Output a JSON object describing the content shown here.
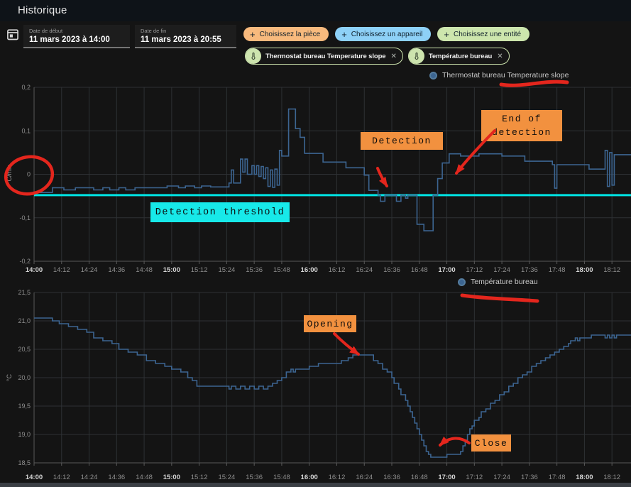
{
  "header": {
    "title": "Historique"
  },
  "filters": {
    "date_start": {
      "label": "Date de début",
      "value": "11 mars 2023 à 14:00"
    },
    "date_end": {
      "label": "Date de fin",
      "value": "11 mars 2023 à 20:55"
    },
    "pickers": [
      {
        "id": "area",
        "label": "Choisissez la pièce",
        "plus": "+",
        "color": "#f8ba7d"
      },
      {
        "id": "device",
        "label": "Choisissez un appareil",
        "plus": "+",
        "color": "#8ed1f7"
      },
      {
        "id": "entity",
        "label": "Choisissez une entité",
        "plus": "+",
        "color": "#cde6ad"
      }
    ],
    "chips": [
      {
        "label": "Thermostat bureau Temperature slope",
        "close": "✕"
      },
      {
        "label": "Température bureau",
        "close": "✕"
      }
    ]
  },
  "annotations": {
    "red_color": "#e4261d",
    "box_color": "#f2913f",
    "cyan_color": "#17e9e9",
    "detection": "Detection",
    "end_of_detection": "End of detection",
    "detection_threshold": "Detection threshold",
    "opening": "Opening",
    "close": "Close"
  },
  "chart_data": [
    {
      "type": "line",
      "step": true,
      "legend": "Thermostat bureau Temperature slope",
      "series_color": "#3c6591",
      "ylabel": "°C/min",
      "ylim": [
        -0.2,
        0.2
      ],
      "yticks": [
        {
          "v": 0.2,
          "label": "0,2"
        },
        {
          "v": 0.1,
          "label": "0,1"
        },
        {
          "v": 0,
          "label": "0"
        },
        {
          "v": -0.1,
          "label": "-0,1"
        },
        {
          "v": -0.2,
          "label": "-0,2"
        }
      ],
      "xticks": [
        "14:00",
        "14:12",
        "14:24",
        "14:36",
        "14:48",
        "15:00",
        "15:12",
        "15:24",
        "15:36",
        "15:48",
        "16:00",
        "16:12",
        "16:24",
        "16:36",
        "16:48",
        "17:00",
        "17:12",
        "17:24",
        "17:36",
        "17:48",
        "18:00",
        "18:12"
      ],
      "minutes_per_tick": 12,
      "threshold": {
        "value": -0.048,
        "color": "#00e5e5",
        "label": "Detection threshold"
      },
      "points": [
        [
          0,
          -0.042
        ],
        [
          8,
          -0.031
        ],
        [
          13,
          -0.036
        ],
        [
          18,
          -0.031
        ],
        [
          26,
          -0.036
        ],
        [
          30,
          -0.031
        ],
        [
          33,
          -0.036
        ],
        [
          37,
          -0.031
        ],
        [
          40,
          -0.036
        ],
        [
          44,
          -0.031
        ],
        [
          58,
          -0.027
        ],
        [
          63,
          -0.031
        ],
        [
          66,
          -0.027
        ],
        [
          70,
          -0.031
        ],
        [
          73,
          -0.027
        ],
        [
          77,
          -0.029
        ],
        [
          85,
          -0.02
        ],
        [
          86,
          0.01
        ],
        [
          87,
          -0.02
        ],
        [
          90,
          0.035
        ],
        [
          91,
          0.005
        ],
        [
          92,
          0.035
        ],
        [
          93,
          0
        ],
        [
          95,
          0.02
        ],
        [
          96,
          0
        ],
        [
          97,
          0.02
        ],
        [
          98,
          -0.005
        ],
        [
          99,
          0.018
        ],
        [
          100,
          -0.01
        ],
        [
          101,
          0.015
        ],
        [
          102,
          -0.028
        ],
        [
          103,
          0.01
        ],
        [
          104,
          -0.03
        ],
        [
          105,
          0.012
        ],
        [
          106,
          -0.025
        ],
        [
          107,
          0.055
        ],
        [
          108,
          0.042
        ],
        [
          111,
          0.15
        ],
        [
          114,
          0.105
        ],
        [
          116,
          0.085
        ],
        [
          118,
          0.048
        ],
        [
          126,
          0.028
        ],
        [
          136,
          0.015
        ],
        [
          144,
          -0.002
        ],
        [
          146,
          -0.037
        ],
        [
          150,
          -0.048
        ],
        [
          151,
          -0.062
        ],
        [
          153,
          -0.048
        ],
        [
          158,
          -0.062
        ],
        [
          160,
          -0.048
        ],
        [
          162,
          -0.055
        ],
        [
          163,
          -0.048
        ],
        [
          167,
          -0.115
        ],
        [
          170,
          -0.13
        ],
        [
          174,
          -0.048
        ],
        [
          176,
          -0.01
        ],
        [
          178,
          0.026
        ],
        [
          181,
          0.047
        ],
        [
          186,
          0.042
        ],
        [
          194,
          0.047
        ],
        [
          204,
          0.042
        ],
        [
          214,
          0.03
        ],
        [
          226,
          0.022
        ],
        [
          227,
          -0.032
        ],
        [
          228,
          0.022
        ],
        [
          242,
          0.012
        ],
        [
          249,
          0.055
        ],
        [
          250,
          -0.028
        ],
        [
          251,
          0.05
        ],
        [
          252,
          -0.025
        ],
        [
          253,
          0.045
        ],
        [
          262,
          0.045
        ]
      ]
    },
    {
      "type": "line",
      "step": true,
      "legend": "Température bureau",
      "series_color": "#3c6591",
      "ylabel": "°C",
      "ylim": [
        18.5,
        21.5
      ],
      "yticks": [
        {
          "v": 21.5,
          "label": "21,5"
        },
        {
          "v": 21.0,
          "label": "21,0"
        },
        {
          "v": 20.5,
          "label": "20,5"
        },
        {
          "v": 20.0,
          "label": "20,0"
        },
        {
          "v": 19.5,
          "label": "19,5"
        },
        {
          "v": 19.0,
          "label": "19,0"
        },
        {
          "v": 18.5,
          "label": "18,5"
        }
      ],
      "xticks": [
        "14:00",
        "14:12",
        "14:24",
        "14:36",
        "14:48",
        "15:00",
        "15:12",
        "15:24",
        "15:36",
        "15:48",
        "16:00",
        "16:12",
        "16:24",
        "16:36",
        "16:48",
        "17:00",
        "17:12",
        "17:24",
        "17:36",
        "17:48",
        "18:00",
        "18:12"
      ],
      "minutes_per_tick": 12,
      "points": [
        [
          0,
          21.05
        ],
        [
          8,
          21.0
        ],
        [
          11,
          20.95
        ],
        [
          15,
          20.9
        ],
        [
          19,
          20.85
        ],
        [
          23,
          20.8
        ],
        [
          26,
          20.7
        ],
        [
          30,
          20.65
        ],
        [
          34,
          20.6
        ],
        [
          37,
          20.5
        ],
        [
          41,
          20.45
        ],
        [
          45,
          20.4
        ],
        [
          49,
          20.3
        ],
        [
          53,
          20.25
        ],
        [
          57,
          20.2
        ],
        [
          60,
          20.15
        ],
        [
          64,
          20.1
        ],
        [
          67,
          20.0
        ],
        [
          69,
          19.95
        ],
        [
          71,
          19.85
        ],
        [
          85,
          19.8
        ],
        [
          86,
          19.85
        ],
        [
          88,
          19.8
        ],
        [
          90,
          19.85
        ],
        [
          92,
          19.8
        ],
        [
          94,
          19.85
        ],
        [
          96,
          19.8
        ],
        [
          98,
          19.85
        ],
        [
          100,
          19.8
        ],
        [
          102,
          19.85
        ],
        [
          104,
          19.9
        ],
        [
          106,
          19.95
        ],
        [
          108,
          20.0
        ],
        [
          110,
          20.1
        ],
        [
          112,
          20.15
        ],
        [
          113,
          20.1
        ],
        [
          114,
          20.15
        ],
        [
          120,
          20.2
        ],
        [
          124,
          20.25
        ],
        [
          134,
          20.3
        ],
        [
          137,
          20.35
        ],
        [
          139,
          20.4
        ],
        [
          148,
          20.3
        ],
        [
          150,
          20.25
        ],
        [
          152,
          20.15
        ],
        [
          154,
          20.1
        ],
        [
          156,
          20.0
        ],
        [
          157,
          19.9
        ],
        [
          159,
          19.8
        ],
        [
          160,
          19.7
        ],
        [
          162,
          19.6
        ],
        [
          163,
          19.5
        ],
        [
          164,
          19.4
        ],
        [
          165,
          19.3
        ],
        [
          166,
          19.2
        ],
        [
          167,
          19.1
        ],
        [
          168,
          19.0
        ],
        [
          169,
          18.9
        ],
        [
          170,
          18.8
        ],
        [
          171,
          18.7
        ],
        [
          172,
          18.65
        ],
        [
          173,
          18.6
        ],
        [
          180,
          18.65
        ],
        [
          186,
          18.7
        ],
        [
          187,
          18.8
        ],
        [
          188,
          18.9
        ],
        [
          189,
          19.0
        ],
        [
          190,
          19.1
        ],
        [
          191,
          19.15
        ],
        [
          192,
          19.25
        ],
        [
          194,
          19.3
        ],
        [
          195,
          19.4
        ],
        [
          197,
          19.45
        ],
        [
          199,
          19.55
        ],
        [
          201,
          19.6
        ],
        [
          203,
          19.7
        ],
        [
          205,
          19.75
        ],
        [
          207,
          19.85
        ],
        [
          209,
          19.9
        ],
        [
          211,
          20.0
        ],
        [
          213,
          20.05
        ],
        [
          215,
          20.1
        ],
        [
          217,
          20.2
        ],
        [
          219,
          20.25
        ],
        [
          221,
          20.3
        ],
        [
          223,
          20.35
        ],
        [
          225,
          20.4
        ],
        [
          227,
          20.45
        ],
        [
          229,
          20.5
        ],
        [
          231,
          20.55
        ],
        [
          233,
          20.6
        ],
        [
          234,
          20.65
        ],
        [
          236,
          20.7
        ],
        [
          237,
          20.65
        ],
        [
          238,
          20.7
        ],
        [
          243,
          20.75
        ],
        [
          249,
          20.7
        ],
        [
          250,
          20.75
        ],
        [
          251,
          20.7
        ],
        [
          252,
          20.75
        ],
        [
          253,
          20.7
        ],
        [
          254,
          20.75
        ],
        [
          262,
          20.75
        ]
      ]
    }
  ]
}
